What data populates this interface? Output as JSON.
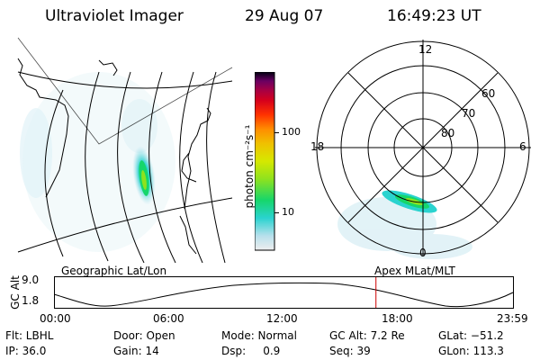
{
  "header": {
    "instrument": "Ultraviolet Imager",
    "date": "29 Aug 07",
    "time": "16:49:23 UT"
  },
  "colorbar": {
    "unit_label": "photon cm⁻²s⁻¹",
    "ticks": [
      {
        "value": 100,
        "label": "100"
      },
      {
        "value": 10,
        "label": "10"
      }
    ],
    "colors": [
      "#e8e8e8",
      "#9fd8ea",
      "#2ad3cf",
      "#16d66b",
      "#8fe21e",
      "#d6e800",
      "#f0c000",
      "#ff8c00",
      "#ff3300",
      "#d6001c",
      "#a40045",
      "#6a0062",
      "#230058",
      "#000000"
    ]
  },
  "polar": {
    "mlt_labels": {
      "top": "12",
      "left": "18",
      "right": "6",
      "bottom": "0"
    },
    "lat_labels": [
      "60",
      "70",
      "80"
    ]
  },
  "plot_labels": {
    "left": "Geographic Lat/Lon",
    "right": "Apex MLat/MLT"
  },
  "altitude_plot": {
    "ylabel": "GC Alt",
    "yticks": [
      "9.0",
      "1.8"
    ],
    "xticks": [
      "00:00",
      "06:00",
      "12:00",
      "18:00",
      "23:59"
    ],
    "marker_time_hours": 16.82,
    "marker_color": "#cc0000"
  },
  "info_rows": [
    [
      "Flt: LBHL",
      "Door: Open",
      "Mode: Normal",
      "GC Alt: 7.2 Re",
      "GLat: −51.2"
    ],
    [
      "IP: 36.0",
      "Gain: 14",
      "Dsp:     0.9",
      "Seq: 39",
      "GLon: 113.3"
    ]
  ]
}
